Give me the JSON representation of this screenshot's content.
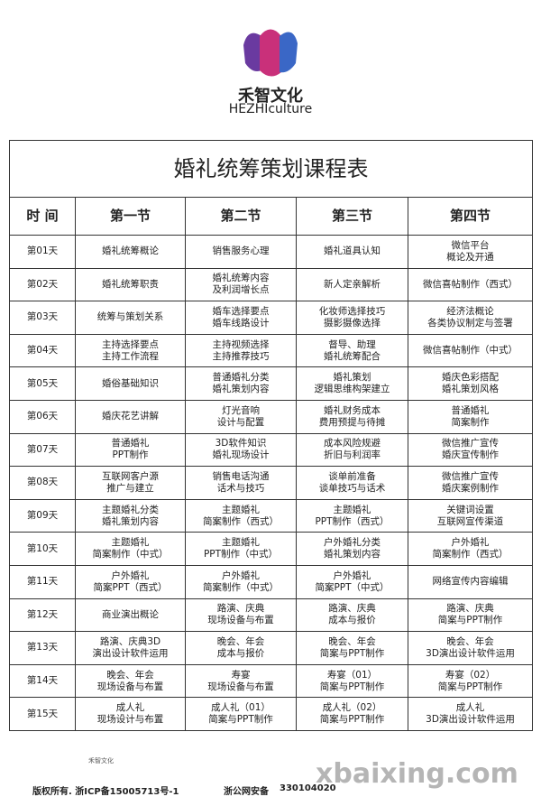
{
  "header": {
    "brand": "禾智文化",
    "brand_en": "HEZHIculture"
  },
  "table": {
    "title": "婚礼统筹策划课程表",
    "columns": [
      "时 间",
      "第一节",
      "第二节",
      "第三节",
      "第四节"
    ],
    "rows": [
      [
        "第01天",
        "婚礼统筹概论",
        "销售服务心理",
        "婚礼道具认知",
        "微信平台\n概论及开通"
      ],
      [
        "第02天",
        "婚礼统筹职责",
        "婚礼统筹内容\n及利润增长点",
        "新人定亲解析",
        "微信喜帖制作（西式）"
      ],
      [
        "第03天",
        "统筹与策划关系",
        "婚车选择要点\n婚车线路设计",
        "化妆师选择技巧\n摄影摄像选择",
        "经济法概论\n各类协议制定与签署"
      ],
      [
        "第04天",
        "主持选择要点\n主持工作流程",
        "主持视频选择\n主持推荐技巧",
        "督导、助理\n婚礼统筹配合",
        "微信喜帖制作（中式）"
      ],
      [
        "第05天",
        "婚俗基础知识",
        "普通婚礼分类\n婚礼策划内容",
        "婚礼策划\n逻辑思维构架建立",
        "婚庆色彩搭配\n婚礼策划风格"
      ],
      [
        "第06天",
        "婚庆花艺讲解",
        "灯光音响\n设计与配置",
        "婚礼财务成本\n费用预提与待摊",
        "普通婚礼\n简案制作"
      ],
      [
        "第07天",
        "普通婚礼\nPPT制作",
        "3D软件知识\n婚礼现场设计",
        "成本风险规避\n折旧与利润率",
        "微信推广宣传\n婚庆宣传制作"
      ],
      [
        "第08天",
        "互联网客户源\n推广与建立",
        "销售电话沟通\n话术与技巧",
        "谈单前准备\n谈单技巧与话术",
        "微信推广宣传\n婚庆案例制作"
      ],
      [
        "第09天",
        "主题婚礼分类\n婚礼策划内容",
        "主题婚礼\n简案制作（西式）",
        "主题婚礼\nPPT制作（西式）",
        "关键词设置\n互联网宣传渠道"
      ],
      [
        "第10天",
        "主题婚礼\n简案制作（中式）",
        "主题婚礼\nPPT制作（中式）",
        "户外婚礼分类\n婚礼策划内容",
        "户外婚礼\n简案制作（西式）"
      ],
      [
        "第11天",
        "户外婚礼\n简案PPT（西式）",
        "户外婚礼\n简案制作（中式）",
        "户外婚礼\n简案PPT（中式）",
        "网络宣传内容编辑"
      ],
      [
        "第12天",
        "商业演出概论",
        "路演、庆典\n现场设备与布置",
        "路演、庆典\n成本与报价",
        "路演、庆典\n简案与PPT制作"
      ],
      [
        "第13天",
        "路演、庆典3D\n演出设计软件运用",
        "晚会、年会\n成本与报价",
        "晚会、年会\n简案与PPT制作",
        "晚会、年会\n3D演出设计软件运用"
      ],
      [
        "第14天",
        "晚会、年会\n现场设备与布置",
        "寿宴\n现场设备与布置",
        "寿宴（01）\n简案与PPT制作",
        "寿宴（02）\n简案与PPT制作"
      ],
      [
        "第15天",
        "成人礼\n现场设计与布置",
        "成人礼（01）\n简案与PPT制作",
        "成人礼（02）\n简案与PPT制作",
        "成人礼\n3D演出设计软件运用"
      ]
    ]
  },
  "footer": {
    "copyright": "版权所有. 浙ICP备15005713号-1",
    "police": "浙公网安备",
    "police_number": "330104020",
    "watermark": "xbaixing.com"
  }
}
